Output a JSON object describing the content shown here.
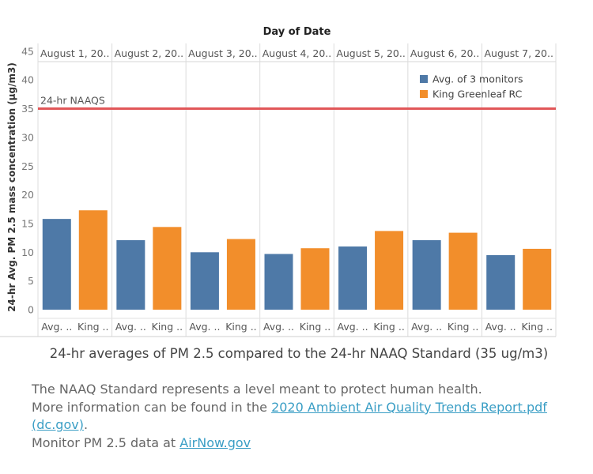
{
  "chart_data": {
    "type": "bar",
    "title": "24-hr averages of PM 2.5 compared to the 24-hr NAAQ Standard (35 ug/m3)",
    "column_header": "Day of Date",
    "ylabel": "24-hr Avg. PM 2.5 mass concentration (μg/m3)",
    "ylim": [
      0,
      45
    ],
    "yticks": [
      0,
      5,
      10,
      15,
      20,
      25,
      30,
      35,
      40,
      45
    ],
    "groups": [
      "August 1, 20..",
      "August 2, 20..",
      "August 3, 20..",
      "August 4, 20..",
      "August 5, 20..",
      "August 6, 20..",
      "August 7, 20.."
    ],
    "bar_labels": [
      "Avg. ..",
      "King .."
    ],
    "series": [
      {
        "name": "Avg. of 3 monitors",
        "color": "#4e79a7",
        "values": [
          15.8,
          12.1,
          10.0,
          9.7,
          11.0,
          12.1,
          9.5
        ]
      },
      {
        "name": "King Greenleaf RC",
        "color": "#f28e2b",
        "values": [
          17.3,
          14.4,
          12.3,
          10.7,
          13.7,
          13.4,
          10.6
        ]
      }
    ],
    "reference_line": {
      "label": "24-hr NAAQS",
      "value": 35,
      "color": "#e15759"
    },
    "legend_position": "top-right",
    "grid": false
  },
  "notes": {
    "line1": "The NAAQ Standard represents a level meant to protect human health.",
    "line2_prefix": "More information can be found in the ",
    "report_link": "2020 Ambient Air Quality Trends Report.pdf (dc.gov)",
    "line2_suffix": ".",
    "line3_prefix": "Monitor PM 2.5 data at ",
    "airnow_link": "AirNow.gov"
  }
}
